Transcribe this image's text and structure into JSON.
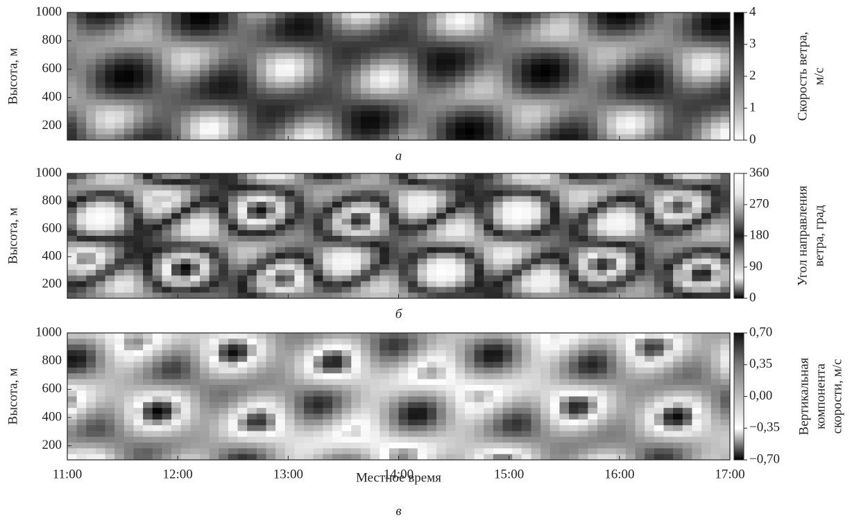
{
  "chart_data": [
    {
      "type": "heatmap",
      "ylabel": "Высота, м",
      "panel_label": "а",
      "ylim": [
        100,
        1000
      ],
      "yticks": [
        200,
        400,
        600,
        800,
        1000
      ],
      "colorbar": {
        "label": [
          "Скорость ветра,",
          "м/с"
        ],
        "lim": [
          0,
          4
        ],
        "ticks": [
          0,
          1,
          2,
          3,
          4
        ],
        "colormap": [
          "#ffffff",
          "#b0b0b0",
          "#6a6a6a",
          "#303030",
          "#000000"
        ]
      }
    },
    {
      "type": "heatmap",
      "ylabel": "Высота, м",
      "panel_label": "б",
      "ylim": [
        100,
        1000
      ],
      "yticks": [
        200,
        400,
        600,
        800,
        1000
      ],
      "colorbar": {
        "label": [
          "Угол направления",
          "ветра, град"
        ],
        "lim": [
          0,
          360
        ],
        "ticks": [
          0,
          90,
          180,
          270,
          360
        ],
        "colormap": [
          "#000000",
          "#f2f2f2",
          "#9a9a9a",
          "#1e1e1e",
          "#8a8a8a",
          "#e8e8e8",
          "#ffffff"
        ]
      }
    },
    {
      "type": "heatmap",
      "ylabel": "Высота, м",
      "panel_label": "в",
      "xlabel": "Местное время",
      "xlim": [
        11,
        17
      ],
      "xticks": [
        {
          "value": 11,
          "label": "11:00"
        },
        {
          "value": 12,
          "label": "12:00"
        },
        {
          "value": 13,
          "label": "13:00"
        },
        {
          "value": 14,
          "label": "14:00"
        },
        {
          "value": 15,
          "label": "15:00"
        },
        {
          "value": 16,
          "label": "16:00"
        },
        {
          "value": 17,
          "label": "17:00"
        }
      ],
      "ylim": [
        100,
        1000
      ],
      "yticks": [
        200,
        400,
        600,
        800,
        1000
      ],
      "colorbar": {
        "label": [
          "Вертикальная",
          "компонента",
          "скорости, м/с"
        ],
        "lim": [
          -0.7,
          0.7
        ],
        "ticks": [
          {
            "value": -0.7,
            "label": "−0,70"
          },
          {
            "value": -0.35,
            "label": "−0,35"
          },
          {
            "value": 0,
            "label": "0,00"
          },
          {
            "value": 0.35,
            "label": "0,35"
          },
          {
            "value": 0.7,
            "label": "0,70"
          }
        ],
        "colormap": [
          "#000000",
          "#ffffff",
          "#bdbdbd",
          "#7a7a7a",
          "#111111"
        ]
      }
    }
  ]
}
